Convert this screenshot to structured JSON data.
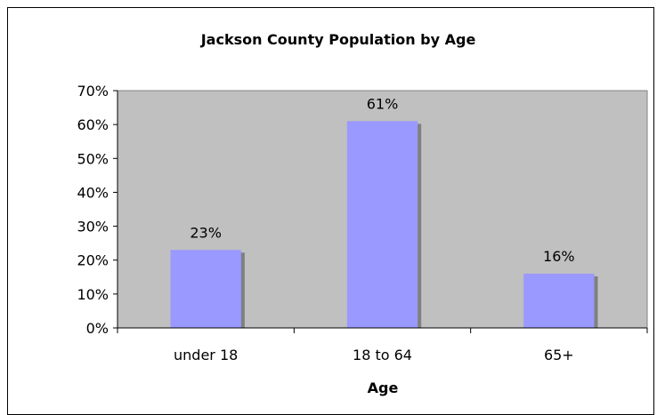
{
  "chart_data": {
    "type": "bar",
    "title": "Jackson County Population by Age",
    "xlabel": "Age",
    "ylabel": "",
    "categories": [
      "under 18",
      "18 to 64",
      "65+"
    ],
    "values": [
      23,
      61,
      16
    ],
    "data_labels": [
      "23%",
      "61%",
      "16%"
    ],
    "ylim": [
      0,
      70
    ],
    "ytick_values": [
      0,
      10,
      20,
      30,
      40,
      50,
      60,
      70
    ],
    "ytick_labels": [
      "0%",
      "10%",
      "20%",
      "30%",
      "40%",
      "50%",
      "60%",
      "70%"
    ],
    "grid": false,
    "legend": "none",
    "colors": {
      "plot_background": "#c0c0c0",
      "bar": "#9999ff",
      "bar_shadow": "#808080",
      "axis": "#000000"
    }
  }
}
